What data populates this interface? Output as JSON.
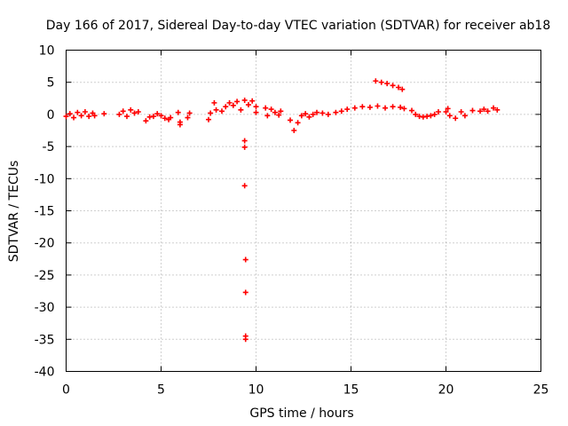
{
  "chart_data": {
    "type": "scatter",
    "title": "Day 166 of 2017, Sidereal Day-to-day VTEC variation (SDTVAR) for receiver ab18",
    "xlabel": "GPS time / hours",
    "ylabel": "SDTVAR / TECUs",
    "xlim": [
      0,
      25
    ],
    "ylim": [
      -40,
      10
    ],
    "xticks": [
      0,
      5,
      10,
      15,
      20,
      25
    ],
    "yticks": [
      10,
      5,
      0,
      -5,
      -10,
      -15,
      -20,
      -25,
      -30,
      -35,
      -40
    ],
    "grid": true,
    "marker": "plus",
    "color": "#ff0000",
    "series": [
      {
        "name": "SDTVAR",
        "points": [
          [
            0.0,
            -0.3
          ],
          [
            0.2,
            0.1
          ],
          [
            0.4,
            -0.5
          ],
          [
            0.6,
            0.3
          ],
          [
            0.8,
            -0.2
          ],
          [
            1.0,
            0.4
          ],
          [
            1.2,
            -0.3
          ],
          [
            1.4,
            0.2
          ],
          [
            1.5,
            -0.2
          ],
          [
            2.0,
            0.1
          ],
          [
            2.8,
            0.0
          ],
          [
            3.0,
            0.5
          ],
          [
            3.2,
            -0.3
          ],
          [
            3.4,
            0.7
          ],
          [
            3.6,
            0.2
          ],
          [
            3.8,
            0.4
          ],
          [
            4.2,
            -1.0
          ],
          [
            4.4,
            -0.4
          ],
          [
            4.6,
            -0.3
          ],
          [
            4.8,
            0.1
          ],
          [
            5.0,
            -0.2
          ],
          [
            5.2,
            -0.6
          ],
          [
            5.4,
            -0.8
          ],
          [
            5.5,
            -0.5
          ],
          [
            5.9,
            0.3
          ],
          [
            6.0,
            -1.2
          ],
          [
            6.0,
            -1.6
          ],
          [
            6.4,
            -0.5
          ],
          [
            6.5,
            0.2
          ],
          [
            7.5,
            -0.8
          ],
          [
            7.6,
            0.2
          ],
          [
            7.8,
            1.8
          ],
          [
            7.9,
            0.7
          ],
          [
            8.2,
            0.5
          ],
          [
            8.4,
            1.2
          ],
          [
            8.6,
            1.8
          ],
          [
            8.8,
            1.4
          ],
          [
            9.0,
            2.0
          ],
          [
            9.2,
            0.7
          ],
          [
            9.4,
            2.2
          ],
          [
            9.6,
            1.5
          ],
          [
            9.8,
            2.1
          ],
          [
            10.0,
            1.2
          ],
          [
            10.0,
            0.3
          ],
          [
            9.4,
            -4.1
          ],
          [
            9.4,
            -5.1
          ],
          [
            9.4,
            -11.1
          ],
          [
            9.45,
            -22.6
          ],
          [
            9.45,
            -27.7
          ],
          [
            9.45,
            -34.5
          ],
          [
            9.45,
            -35.0
          ],
          [
            10.5,
            1.0
          ],
          [
            10.6,
            -0.2
          ],
          [
            10.8,
            0.8
          ],
          [
            11.0,
            0.3
          ],
          [
            11.2,
            -0.1
          ],
          [
            11.3,
            0.5
          ],
          [
            11.8,
            -0.9
          ],
          [
            12.0,
            -2.5
          ],
          [
            12.2,
            -1.3
          ],
          [
            12.4,
            -0.2
          ],
          [
            12.6,
            0.1
          ],
          [
            12.8,
            -0.4
          ],
          [
            13.0,
            0.0
          ],
          [
            13.2,
            0.3
          ],
          [
            13.5,
            0.2
          ],
          [
            13.8,
            0.0
          ],
          [
            14.2,
            0.3
          ],
          [
            14.5,
            0.5
          ],
          [
            14.8,
            0.8
          ],
          [
            15.2,
            1.0
          ],
          [
            15.6,
            1.2
          ],
          [
            16.0,
            1.1
          ],
          [
            16.4,
            1.3
          ],
          [
            16.8,
            1.0
          ],
          [
            17.2,
            1.2
          ],
          [
            17.6,
            1.1
          ],
          [
            17.8,
            0.9
          ],
          [
            16.3,
            5.2
          ],
          [
            16.6,
            5.0
          ],
          [
            16.9,
            4.8
          ],
          [
            17.2,
            4.5
          ],
          [
            17.5,
            4.2
          ],
          [
            17.7,
            3.9
          ],
          [
            18.2,
            0.6
          ],
          [
            18.4,
            0.0
          ],
          [
            18.6,
            -0.3
          ],
          [
            18.8,
            -0.4
          ],
          [
            19.0,
            -0.3
          ],
          [
            19.2,
            -0.2
          ],
          [
            19.4,
            0.0
          ],
          [
            19.6,
            0.4
          ],
          [
            20.0,
            0.4
          ],
          [
            20.1,
            0.9
          ],
          [
            20.2,
            -0.2
          ],
          [
            20.5,
            -0.6
          ],
          [
            20.8,
            0.4
          ],
          [
            21.0,
            -0.2
          ],
          [
            21.4,
            0.6
          ],
          [
            21.8,
            0.5
          ],
          [
            22.0,
            0.8
          ],
          [
            22.2,
            0.5
          ],
          [
            22.5,
            1.0
          ],
          [
            22.7,
            0.7
          ]
        ]
      }
    ]
  }
}
